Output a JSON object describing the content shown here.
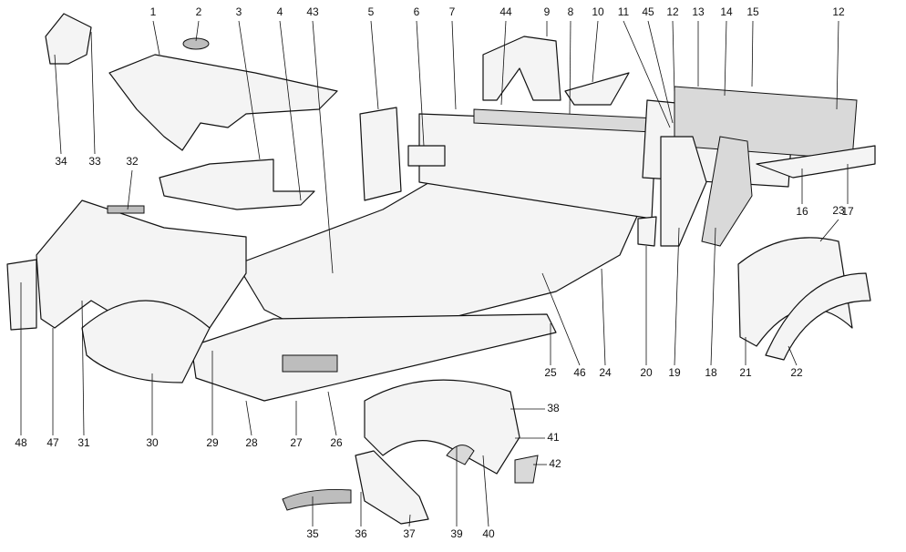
{
  "callouts": [
    "1",
    "2",
    "3",
    "4",
    "43",
    "5",
    "6",
    "7",
    "44",
    "9",
    "8",
    "10",
    "11",
    "45",
    "12",
    "13",
    "14",
    "15",
    "12",
    "34",
    "33",
    "32",
    "16",
    "17",
    "23",
    "25",
    "46",
    "24",
    "20",
    "19",
    "18",
    "21",
    "22",
    "48",
    "47",
    "31",
    "30",
    "29",
    "28",
    "27",
    "26",
    "38",
    "41",
    "42",
    "35",
    "36",
    "37",
    "39",
    "40"
  ]
}
